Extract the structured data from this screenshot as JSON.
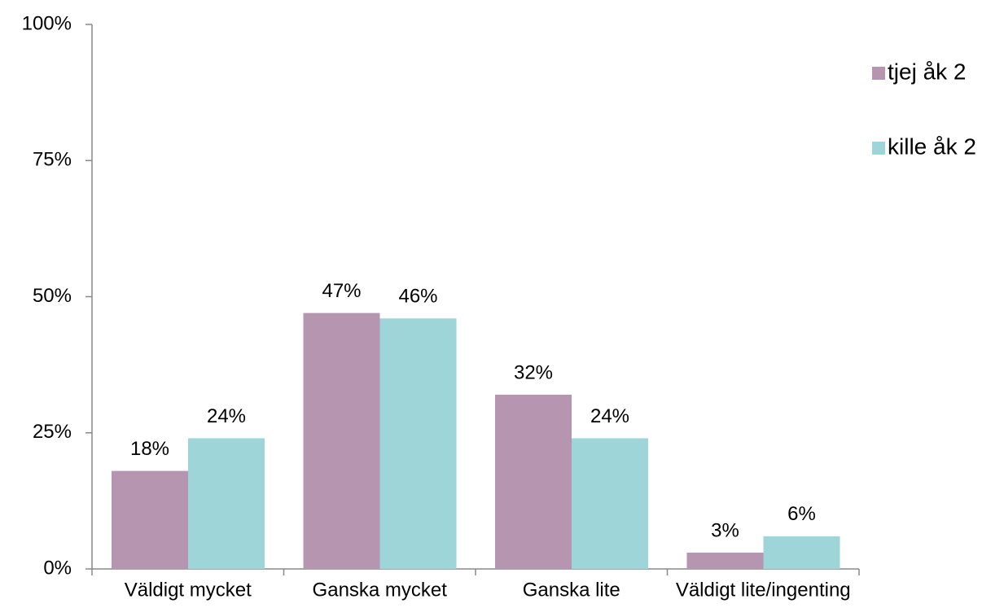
{
  "chart_data": {
    "type": "bar",
    "categories": [
      "Väldigt mycket",
      "Ganska mycket",
      "Ganska lite",
      "Väldigt lite/ingenting"
    ],
    "series": [
      {
        "name": "tjej åk 2",
        "color": "#b695b0",
        "values": [
          18,
          47,
          32,
          3
        ],
        "value_labels": [
          "18%",
          "47%",
          "32%",
          "3%"
        ]
      },
      {
        "name": "kille åk 2",
        "color": "#9dd5d9",
        "values": [
          24,
          46,
          24,
          6
        ],
        "value_labels": [
          "24%",
          "46%",
          "24%",
          "6%"
        ]
      }
    ],
    "ylim": [
      0,
      100
    ],
    "yticks": [
      {
        "value": 0,
        "label": "0%"
      },
      {
        "value": 25,
        "label": "25%"
      },
      {
        "value": 50,
        "label": "50%"
      },
      {
        "value": 75,
        "label": "75%"
      },
      {
        "value": 100,
        "label": "100%"
      }
    ],
    "grid": false,
    "legend": "right"
  }
}
